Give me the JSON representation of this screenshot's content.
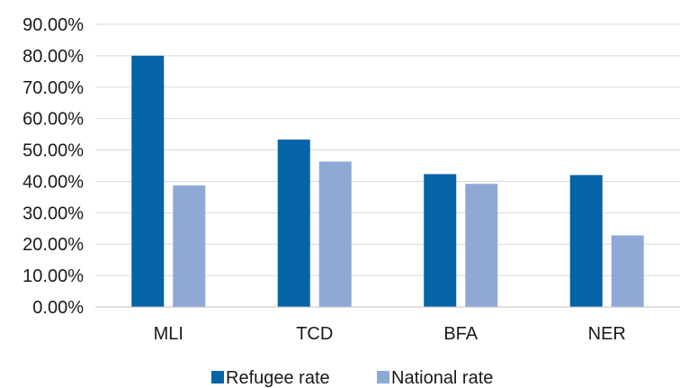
{
  "chart_data": {
    "type": "bar",
    "categories": [
      "MLI",
      "TCD",
      "BFA",
      "NER"
    ],
    "series": [
      {
        "name": "Refugee rate",
        "values": [
          0.8,
          0.533,
          0.423,
          0.42
        ],
        "color": "#0563a8"
      },
      {
        "name": "National rate",
        "values": [
          0.387,
          0.463,
          0.392,
          0.228
        ],
        "color": "#8ea9d5"
      }
    ],
    "ylim": [
      0,
      0.9
    ],
    "yticks": [
      "0.00%",
      "10.00%",
      "20.00%",
      "30.00%",
      "40.00%",
      "50.00%",
      "60.00%",
      "70.00%",
      "80.00%",
      "90.00%"
    ],
    "title": "",
    "xlabel": "",
    "ylabel": "",
    "grid": true,
    "legend_position": "bottom",
    "gridline_color": "#d9d9d9",
    "axis_color": "#bfbfbf"
  }
}
